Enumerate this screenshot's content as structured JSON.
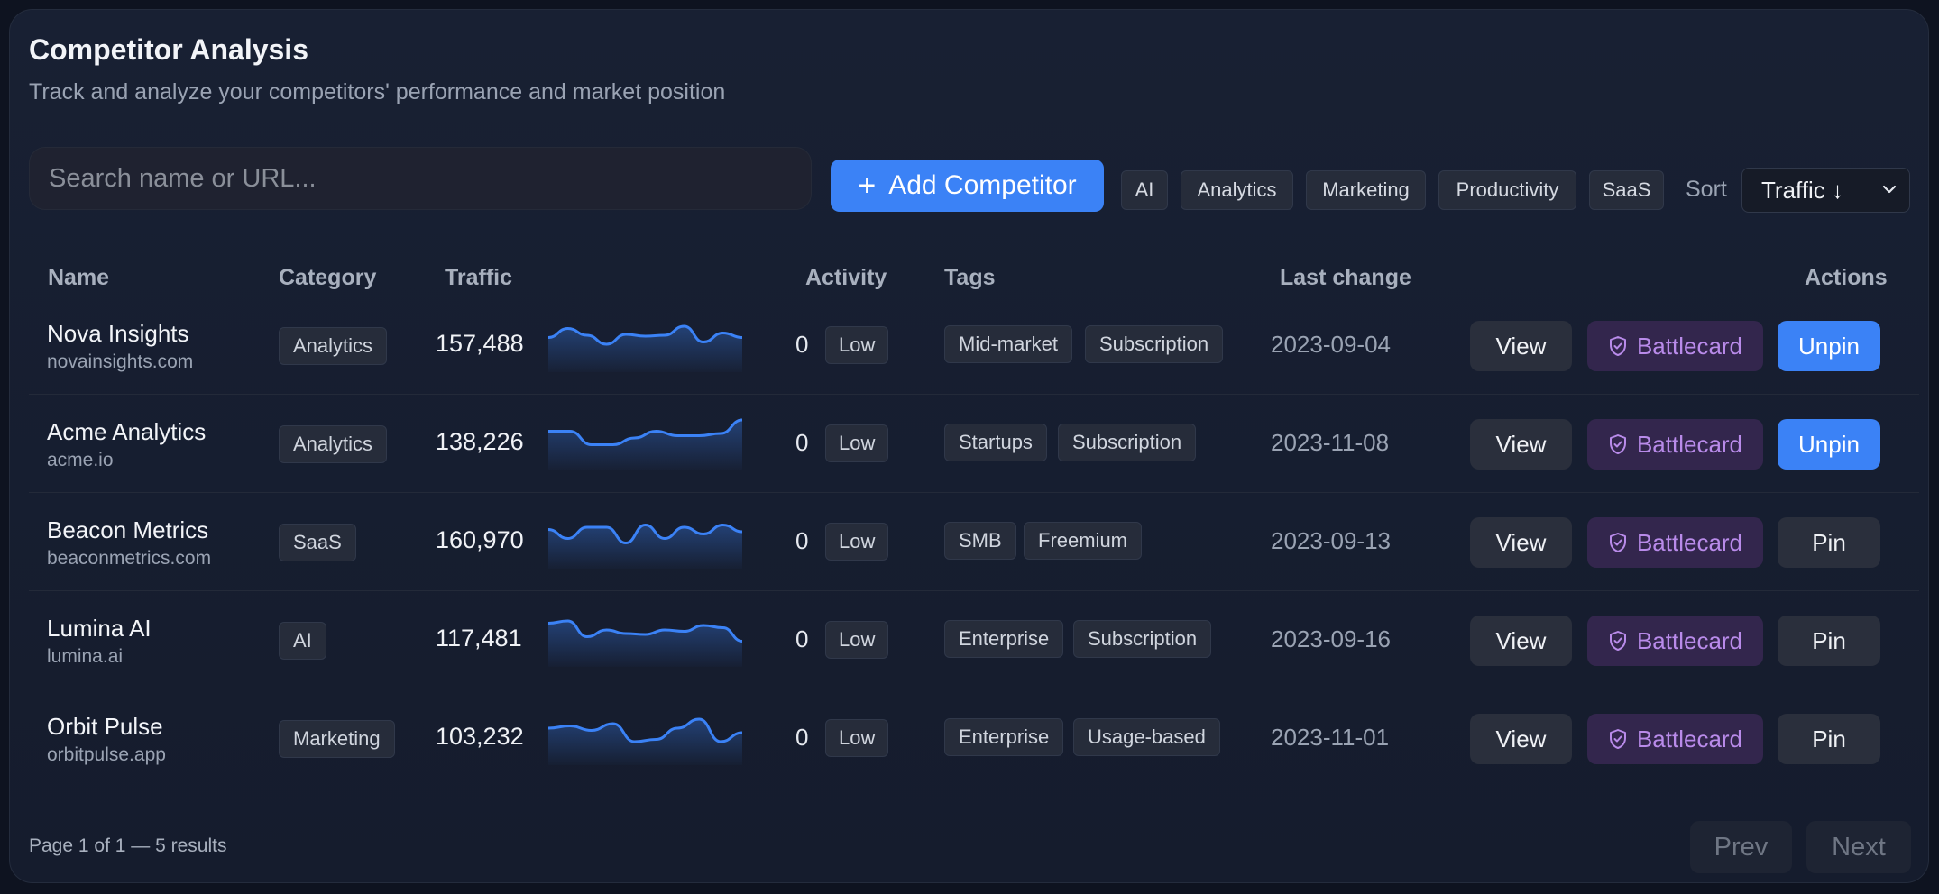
{
  "header": {
    "title": "Competitor Analysis",
    "subtitle": "Track and analyze your competitors' performance and market position"
  },
  "toolbar": {
    "search_placeholder": "Search name or URL...",
    "add_label": "Add Competitor",
    "filters": [
      "AI",
      "Analytics",
      "Marketing",
      "Productivity",
      "SaaS"
    ],
    "sort_label": "Sort",
    "sort_value": "Traffic ↓"
  },
  "table": {
    "columns": [
      "Name",
      "Category",
      "Traffic",
      "Activity",
      "Tags",
      "Last change",
      "Actions"
    ],
    "rows": [
      {
        "name": "Nova Insights",
        "url": "novainsights.com",
        "category": "Analytics",
        "traffic": "157,488",
        "activity": "0",
        "level": "Low",
        "tags": [
          "Mid-market",
          "Subscription"
        ],
        "last_change": "2023-09-04",
        "view": "View",
        "battlecard": "Battlecard",
        "pin": "Unpin",
        "pinned": true,
        "spark": [
          0.35,
          0.15,
          0.3,
          0.5,
          0.28,
          0.32,
          0.3,
          0.1,
          0.45,
          0.25,
          0.35
        ]
      },
      {
        "name": "Acme Analytics",
        "url": "acme.io",
        "category": "Analytics",
        "traffic": "138,226",
        "activity": "0",
        "level": "Low",
        "tags": [
          "Startups",
          "Subscription"
        ],
        "last_change": "2023-11-08",
        "view": "View",
        "battlecard": "Battlecard",
        "pin": "Unpin",
        "pinned": true,
        "spark": [
          0.25,
          0.25,
          0.55,
          0.55,
          0.4,
          0.25,
          0.35,
          0.35,
          0.3,
          0.0
        ]
      },
      {
        "name": "Beacon Metrics",
        "url": "beaconmetrics.com",
        "category": "SaaS",
        "traffic": "160,970",
        "activity": "0",
        "level": "Low",
        "tags": [
          "SMB",
          "Freemium"
        ],
        "last_change": "2023-09-13",
        "view": "View",
        "battlecard": "Battlecard",
        "pin": "Pin",
        "pinned": false,
        "spark": [
          0.25,
          0.45,
          0.2,
          0.2,
          0.55,
          0.15,
          0.45,
          0.2,
          0.35,
          0.15,
          0.3
        ]
      },
      {
        "name": "Lumina AI",
        "url": "lumina.ai",
        "category": "AI",
        "traffic": "117,481",
        "activity": "0",
        "level": "Low",
        "tags": [
          "Enterprise",
          "Subscription"
        ],
        "last_change": "2023-09-16",
        "view": "View",
        "battlecard": "Battlecard",
        "pin": "Pin",
        "pinned": false,
        "spark": [
          0.15,
          0.1,
          0.45,
          0.3,
          0.38,
          0.4,
          0.3,
          0.33,
          0.2,
          0.25,
          0.55
        ]
      },
      {
        "name": "Orbit Pulse",
        "url": "orbitpulse.app",
        "category": "Marketing",
        "traffic": "103,232",
        "activity": "0",
        "level": "Low",
        "tags": [
          "Enterprise",
          "Usage-based"
        ],
        "last_change": "2023-11-01",
        "view": "View",
        "battlecard": "Battlecard",
        "pin": "Pin",
        "pinned": false,
        "spark": [
          0.3,
          0.25,
          0.35,
          0.2,
          0.6,
          0.55,
          0.3,
          0.1,
          0.6,
          0.4
        ]
      }
    ]
  },
  "footer": {
    "summary": "Page 1 of 1 — 5 results",
    "prev": "Prev",
    "next": "Next"
  },
  "colors": {
    "accent": "#3b82f6",
    "battlecard": "#b98bea",
    "sparkline": "#3b82f6"
  }
}
